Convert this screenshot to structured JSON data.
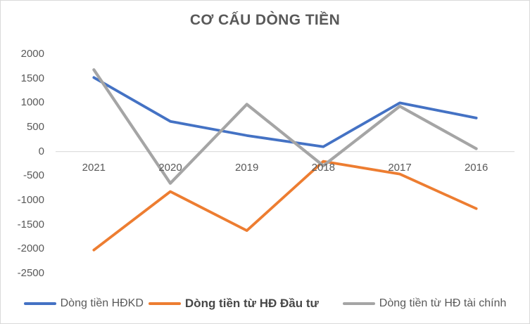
{
  "chart_data": {
    "type": "line",
    "title": "CƠ CẤU DÒNG TIỀN",
    "categories": [
      "2021",
      "2020",
      "2019",
      "2018",
      "2017",
      "2016"
    ],
    "series": [
      {
        "name": "Dòng tiền HĐKD",
        "color": "#4472C4",
        "values": [
          1520,
          620,
          330,
          100,
          1000,
          690
        ]
      },
      {
        "name": "Dòng tiền từ HĐ Đầu tư",
        "color": "#ED7D31",
        "values": [
          -2020,
          -820,
          -1620,
          -200,
          -460,
          -1170
        ]
      },
      {
        "name": "Dòng tiền từ HĐ tài chính",
        "color": "#A5A5A5",
        "values": [
          1680,
          -650,
          970,
          -290,
          930,
          60
        ]
      }
    ],
    "yticks": [
      2000,
      1500,
      1000,
      500,
      0,
      -500,
      -1000,
      -1500,
      -2000,
      -2500
    ],
    "ylim": [
      -2500,
      2000
    ],
    "xlabel": "",
    "ylabel": "",
    "grid": false,
    "legend_position": "bottom",
    "axis_line_color": "#D9D9D9",
    "text_color": "#595959",
    "background_color": "#FFFFFF"
  }
}
